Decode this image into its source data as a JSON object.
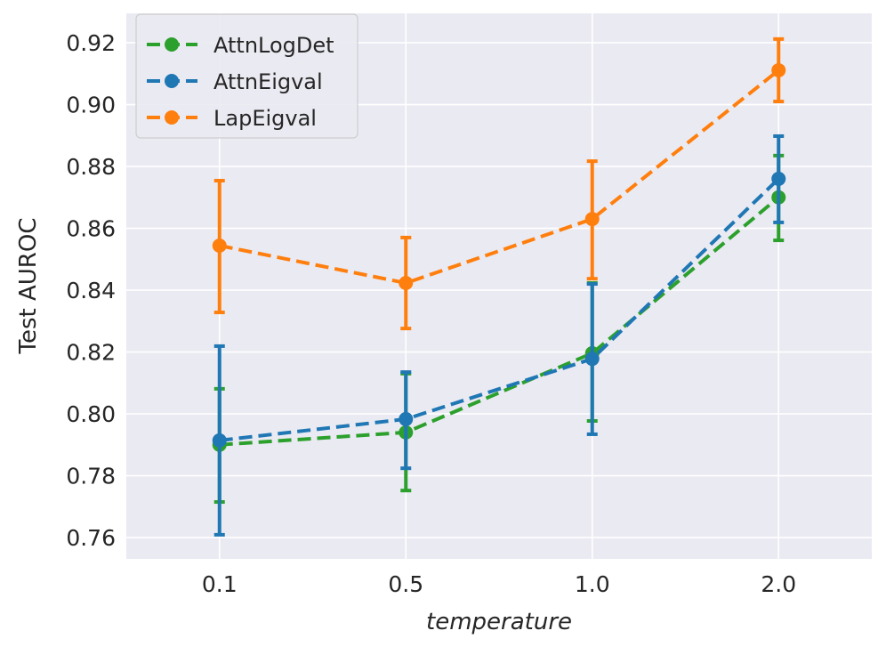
{
  "chart_data": {
    "type": "line",
    "title": "",
    "xlabel": "temperature",
    "ylabel": "Test AUROC",
    "categories": [
      "0.1",
      "0.5",
      "1.0",
      "2.0"
    ],
    "ylim": [
      0.7531,
      0.9295
    ],
    "yticks": [
      "0.76",
      "0.78",
      "0.80",
      "0.82",
      "0.84",
      "0.86",
      "0.88",
      "0.90",
      "0.92"
    ],
    "ytick_values": [
      0.76,
      0.78,
      0.8,
      0.82,
      0.84,
      0.86,
      0.88,
      0.9,
      0.92
    ],
    "grid": true,
    "legend_position": "top-left",
    "series": [
      {
        "name": "AttnLogDet",
        "color": "#2ca02c",
        "values": [
          0.79,
          0.794,
          0.8196,
          0.87
        ],
        "err_low": [
          0.7715,
          0.7752,
          0.7977,
          0.8561
        ],
        "err_high": [
          0.8081,
          0.813,
          0.8423,
          0.8835
        ]
      },
      {
        "name": "AttnEigval",
        "color": "#1f77b4",
        "values": [
          0.7914,
          0.7983,
          0.8178,
          0.876
        ],
        "err_low": [
          0.7609,
          0.7824,
          0.7934,
          0.8619
        ],
        "err_high": [
          0.8219,
          0.8135,
          0.842,
          0.8898
        ]
      },
      {
        "name": "LapEigval",
        "color": "#ff7f0e",
        "values": [
          0.8544,
          0.8423,
          0.863,
          0.9111
        ],
        "err_low": [
          0.8328,
          0.8276,
          0.8437,
          0.901
        ],
        "err_high": [
          0.8754,
          0.857,
          0.8817,
          0.9212
        ]
      }
    ]
  }
}
